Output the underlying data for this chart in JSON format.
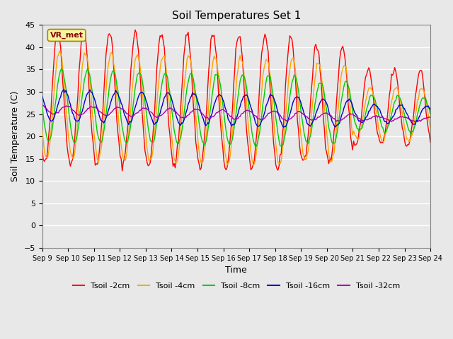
{
  "title": "Soil Temperatures Set 1",
  "xlabel": "Time",
  "ylabel": "Soil Temperature (C)",
  "ylim": [
    -5,
    45
  ],
  "xlim": [
    0,
    15
  ],
  "x_tick_labels": [
    "Sep 9",
    "Sep 10",
    "Sep 11",
    "Sep 12",
    "Sep 13",
    "Sep 14",
    "Sep 15",
    "Sep 16",
    "Sep 17",
    "Sep 18",
    "Sep 19",
    "Sep 20",
    "Sep 21",
    "Sep 22",
    "Sep 23",
    "Sep 24"
  ],
  "station_label": "VR_met",
  "bg_color": "#e8e8e8",
  "plot_bg": "#e8e8e8",
  "grid_color": "#ffffff",
  "series_colors": {
    "2cm": "#ff0000",
    "4cm": "#ffa500",
    "8cm": "#00cc00",
    "16cm": "#0000cc",
    "32cm": "#aa00aa"
  },
  "series_labels": [
    "Tsoil -2cm",
    "Tsoil -4cm",
    "Tsoil -8cm",
    "Tsoil -16cm",
    "Tsoil -32cm"
  ]
}
